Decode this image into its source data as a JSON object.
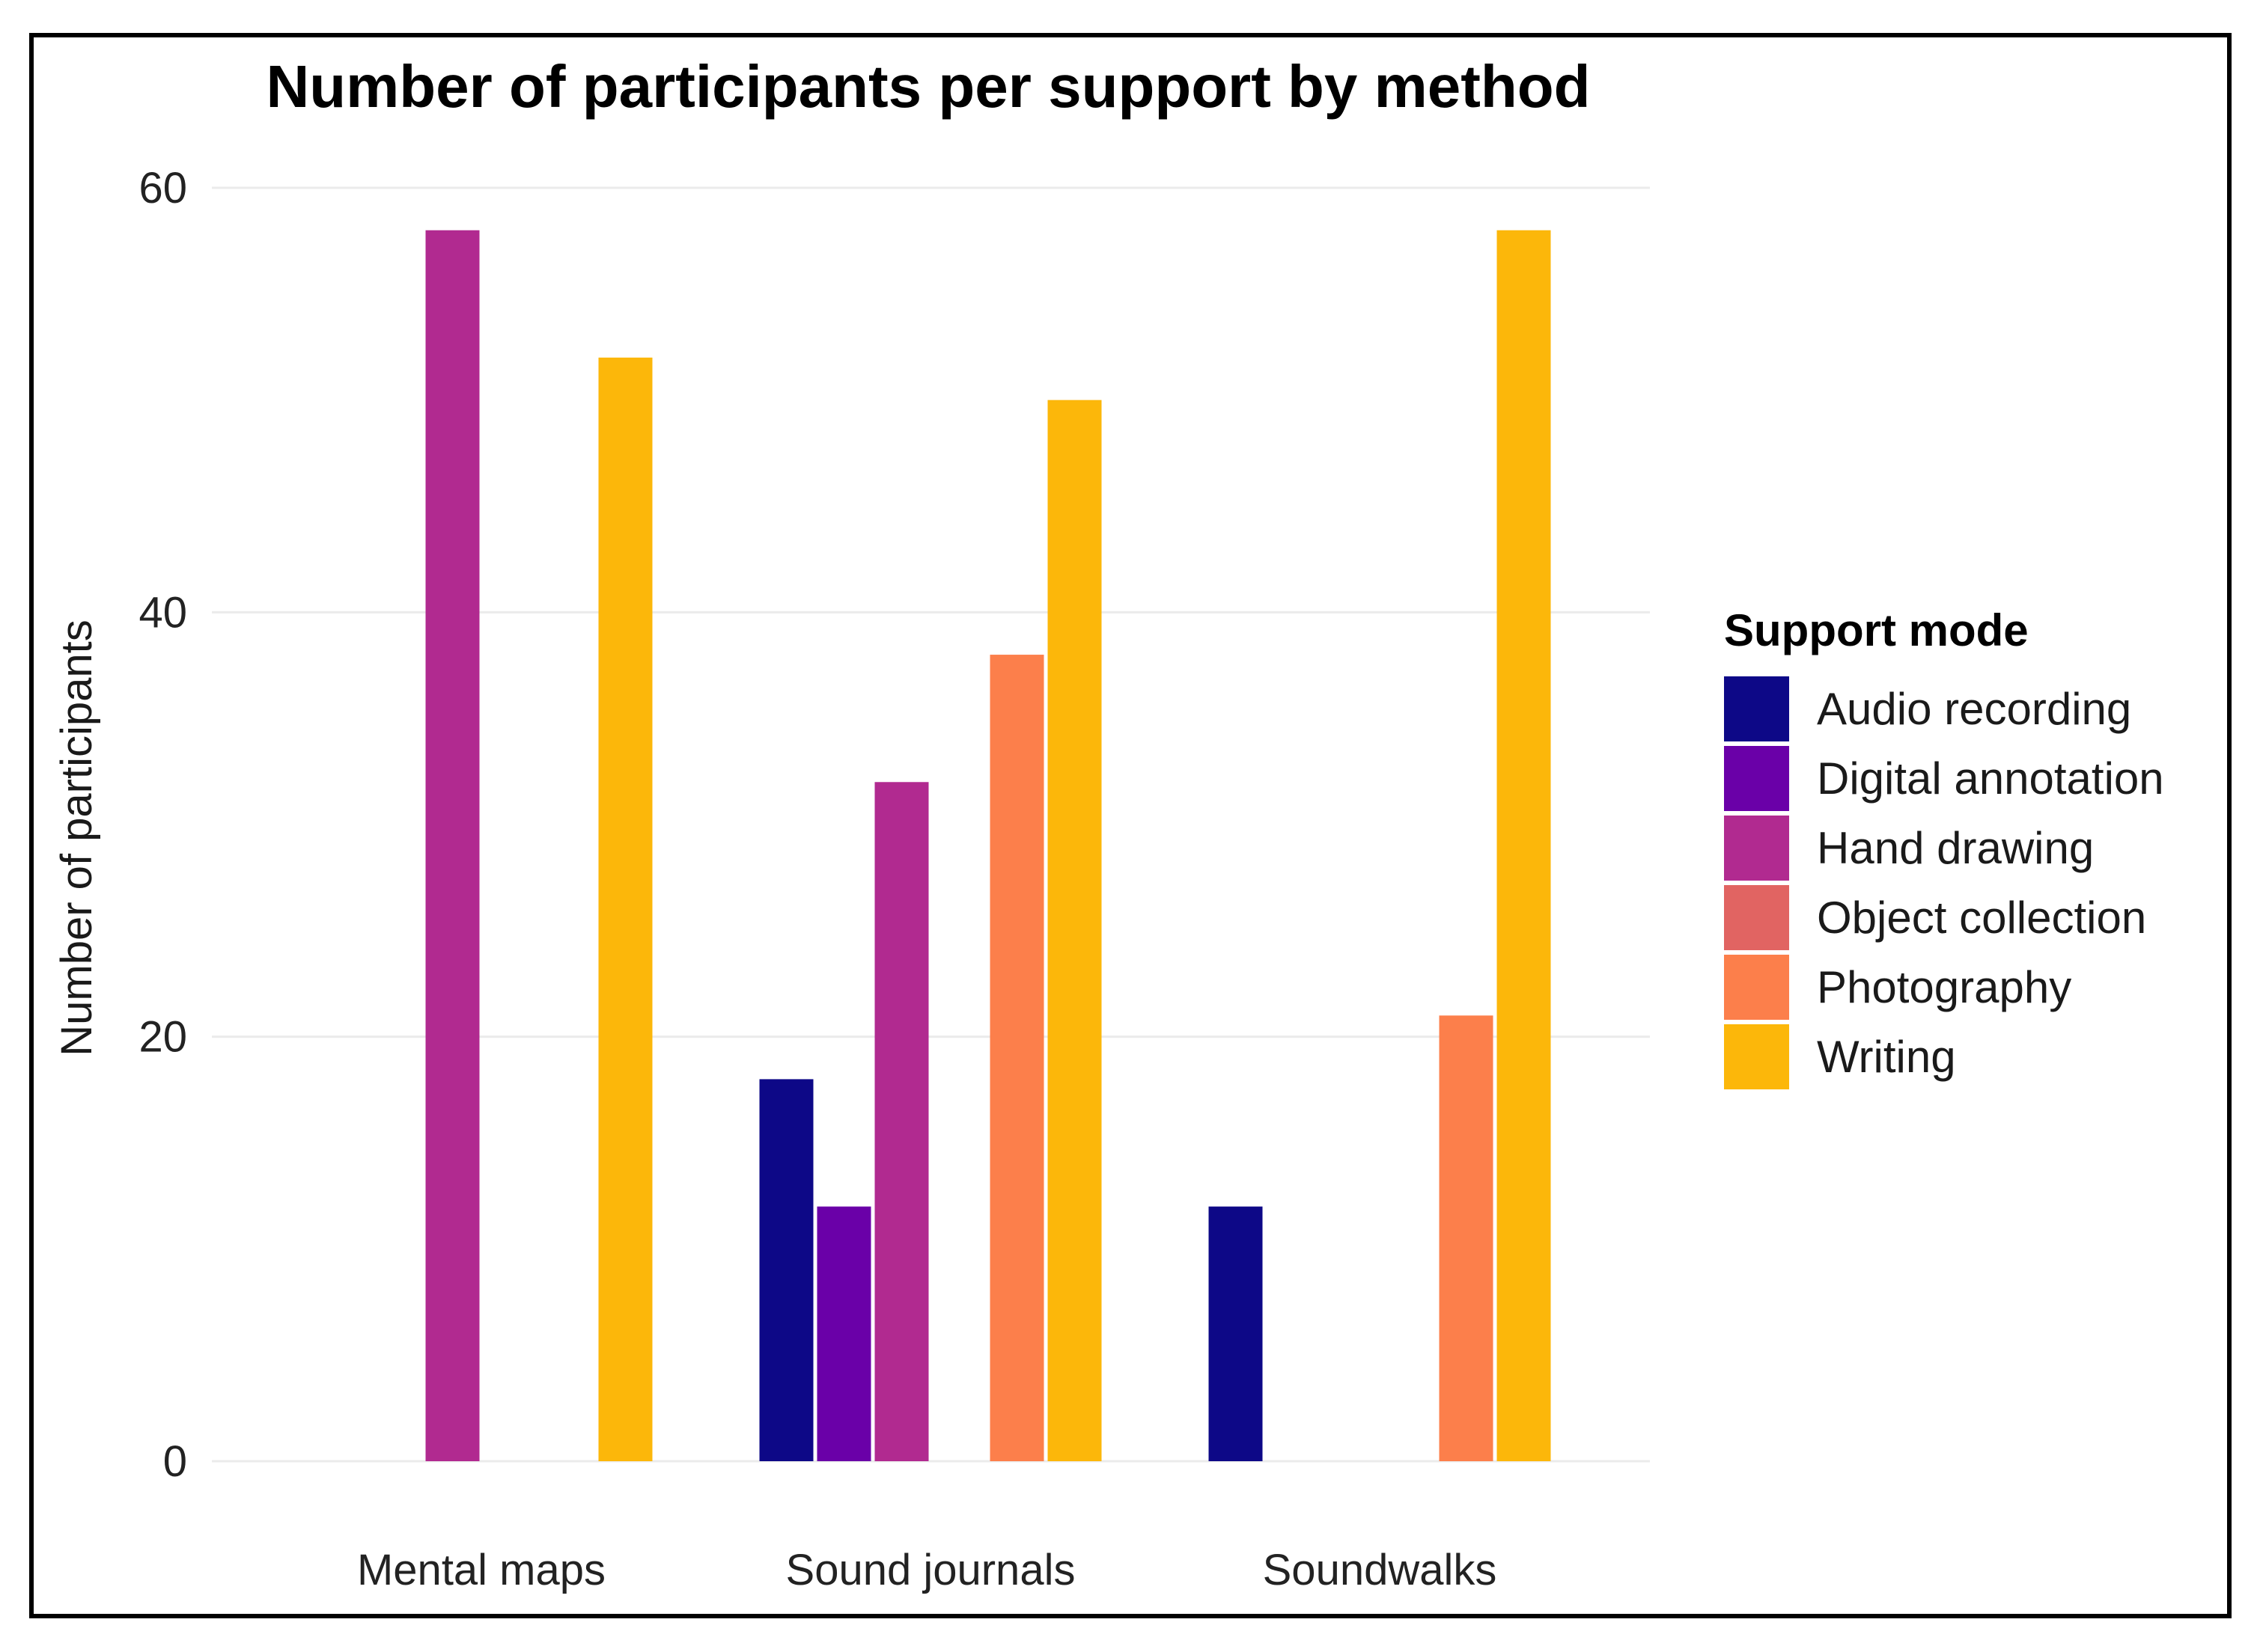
{
  "chart_data": {
    "type": "bar",
    "title": "Number of participants per support by method",
    "xlabel": "",
    "ylabel": "Number of participants",
    "ylim": [
      0,
      62
    ],
    "yticks": [
      0,
      20,
      40,
      60
    ],
    "grid": true,
    "legend_position": "right",
    "legend_title": "Support mode",
    "categories": [
      "Mental maps",
      "Sound journals",
      "Soundwalks"
    ],
    "series": [
      {
        "name": "Audio recording",
        "color": "#0d0887",
        "values": [
          0,
          18,
          12
        ]
      },
      {
        "name": "Digital annotation",
        "color": "#6a00a8",
        "values": [
          0,
          12,
          0
        ]
      },
      {
        "name": "Hand drawing",
        "color": "#b12a90",
        "values": [
          58,
          32,
          0
        ]
      },
      {
        "name": "Object collection",
        "color": "#e16462",
        "values": [
          0,
          0,
          0
        ]
      },
      {
        "name": "Photography",
        "color": "#fc7f4b",
        "values": [
          0,
          38,
          21
        ]
      },
      {
        "name": "Writing",
        "color": "#fcb70a",
        "values": [
          52,
          50,
          58
        ]
      }
    ]
  }
}
